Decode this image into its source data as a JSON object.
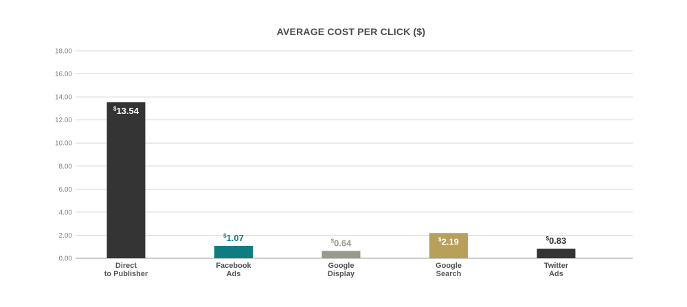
{
  "chart_data": {
    "type": "bar",
    "title": "AVERAGE COST PER CLICK ($)",
    "xlabel": "",
    "ylabel": "",
    "ylim": [
      0,
      18
    ],
    "yticks": [
      "0.00",
      "2.00",
      "4.00",
      "6.00",
      "8.00",
      "10.00",
      "12.00",
      "14.00",
      "16.00",
      "18.00"
    ],
    "grid": true,
    "legend": "none",
    "currency_symbol": "$",
    "categories": [
      [
        "Direct",
        "to Publisher"
      ],
      [
        "Facebook",
        "Ads"
      ],
      [
        "Google",
        "Display"
      ],
      [
        "Google",
        "Search"
      ],
      [
        "Twitter",
        "Ads"
      ]
    ],
    "values": [
      13.54,
      1.07,
      0.64,
      2.19,
      0.83
    ],
    "value_labels": [
      "13.54",
      "1.07",
      "0.64",
      "2.19",
      "0.83"
    ],
    "bar_colors": [
      "#343434",
      "#0e7d82",
      "#9a9a8c",
      "#b89f5a",
      "#343434"
    ],
    "label_colors": [
      "#ffffff",
      "#0e7d82",
      "#9a9a8c",
      "#ffffff",
      "#343434"
    ],
    "label_inside": [
      true,
      false,
      false,
      true,
      false
    ]
  }
}
